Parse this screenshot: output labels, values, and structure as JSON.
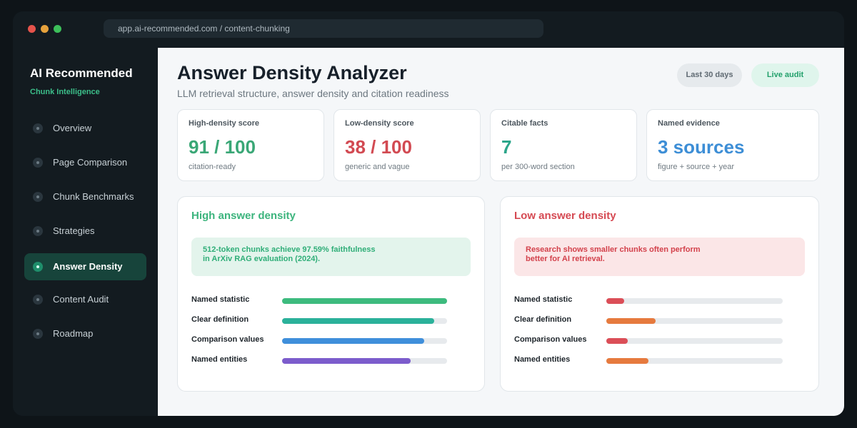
{
  "window": {
    "url": "app.ai-recommended.com / content-chunking",
    "dot_colors": [
      "#e5534b",
      "#e6a23c",
      "#3cbf5a"
    ]
  },
  "sidebar": {
    "brand": "AI Recommended",
    "subtitle": "Chunk Intelligence",
    "items": [
      {
        "label": "Overview",
        "active": false
      },
      {
        "label": "Page Comparison",
        "active": false
      },
      {
        "label": "Chunk Benchmarks",
        "active": false
      },
      {
        "label": "Strategies",
        "active": false
      },
      {
        "label": "Answer Density",
        "active": true
      },
      {
        "label": "Content Audit",
        "active": false
      },
      {
        "label": "Roadmap",
        "active": false
      }
    ]
  },
  "header": {
    "title": "Answer Density Analyzer",
    "subtitle": "LLM retrieval structure, answer density and citation readiness",
    "range_label": "Last 30 days",
    "live_label": "Live audit"
  },
  "stats": [
    {
      "label": "High-density score",
      "value": "91 / 100",
      "note": "citation-ready",
      "color": "#3aa776"
    },
    {
      "label": "Low-density score",
      "value": "38 / 100",
      "note": "generic and vague",
      "color": "#d24a52"
    },
    {
      "label": "Citable facts",
      "value": "7",
      "note": "per 300-word section",
      "color": "#2ba58a"
    },
    {
      "label": "Named evidence",
      "value": "3 sources",
      "note": "figure + source + year",
      "color": "#3d8ed6"
    }
  ],
  "panels": {
    "high": {
      "title": "High answer density",
      "title_color": "#3cb47d",
      "quote_lines": [
        "512-token chunks achieve 97.59% faithfulness",
        "in ArXiv RAG evaluation (2024)."
      ],
      "quote_bg": "#e3f4ec",
      "quote_color": "#2fae78",
      "metrics": [
        {
          "label": "Named statistic",
          "level": 1.0,
          "color": "#3dbb7e"
        },
        {
          "label": "Clear definition",
          "level": 0.92,
          "color": "#2bb19a"
        },
        {
          "label": "Comparison values",
          "level": 0.86,
          "color": "#3f8fdb"
        },
        {
          "label": "Named entities",
          "level": 0.78,
          "color": "#7c5ccc"
        }
      ]
    },
    "low": {
      "title": "Low answer density",
      "title_color": "#d54952",
      "quote_lines": [
        "Research shows smaller chunks often perform",
        "better for AI retrieval."
      ],
      "quote_bg": "#fbe6e7",
      "quote_color": "#d3414b",
      "metrics": [
        {
          "label": "Named statistic",
          "level": 0.1,
          "color": "#db4e57"
        },
        {
          "label": "Clear definition",
          "level": 0.28,
          "color": "#e67a3e"
        },
        {
          "label": "Comparison values",
          "level": 0.12,
          "color": "#db4e57"
        },
        {
          "label": "Named entities",
          "level": 0.24,
          "color": "#e67a3e"
        }
      ]
    }
  }
}
